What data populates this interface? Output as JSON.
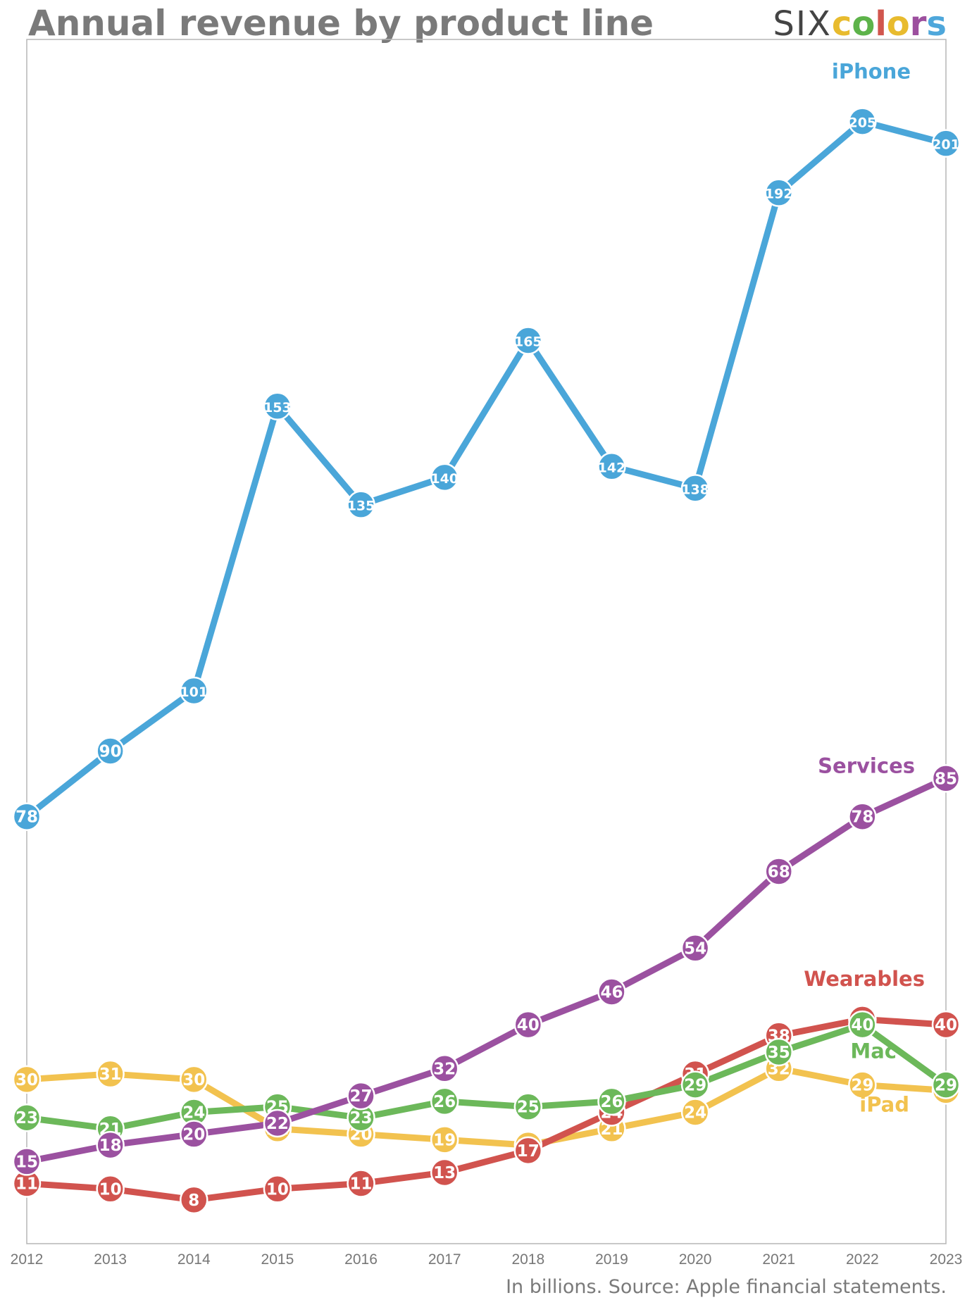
{
  "header": {
    "title": "Annual revenue by product line",
    "brand_prefix": "SIX",
    "brand_word": "colors",
    "brand_colors": [
      "#e8bb2e",
      "#5db34a",
      "#d1564e",
      "#e8bb2e",
      "#9c4f9e",
      "#4ea7db"
    ]
  },
  "footer": {
    "source": "In billions. Source: Apple financial statements."
  },
  "chart_data": {
    "type": "line",
    "title": "Annual revenue by product line",
    "xlabel": "",
    "ylabel": "",
    "categories": [
      "2012",
      "2013",
      "2014",
      "2015",
      "2016",
      "2017",
      "2018",
      "2019",
      "2020",
      "2021",
      "2022",
      "2023"
    ],
    "ylim": [
      0,
      220
    ],
    "grid": false,
    "legend": "inline labels at right end of each line",
    "series": [
      {
        "name": "iPad",
        "color": "#f2c24f",
        "values": [
          30,
          31,
          30,
          21,
          20,
          19,
          18,
          21,
          24,
          32,
          29,
          28
        ]
      },
      {
        "name": "Wearables",
        "color": "#d1534e",
        "values": [
          11,
          10,
          8,
          10,
          11,
          13,
          17,
          24,
          31,
          38,
          41,
          40
        ]
      },
      {
        "name": "Mac",
        "color": "#6cb85a",
        "values": [
          23,
          21,
          24,
          25,
          23,
          26,
          25,
          26,
          29,
          35,
          40,
          29
        ]
      },
      {
        "name": "Services",
        "color": "#9b51a0",
        "values": [
          15,
          18,
          20,
          22,
          27,
          32,
          40,
          46,
          54,
          68,
          78,
          85
        ]
      },
      {
        "name": "iPhone",
        "color": "#4aa6d9",
        "values": [
          78,
          90,
          101,
          153,
          135,
          140,
          165,
          142,
          138,
          192,
          205,
          201
        ]
      }
    ]
  }
}
